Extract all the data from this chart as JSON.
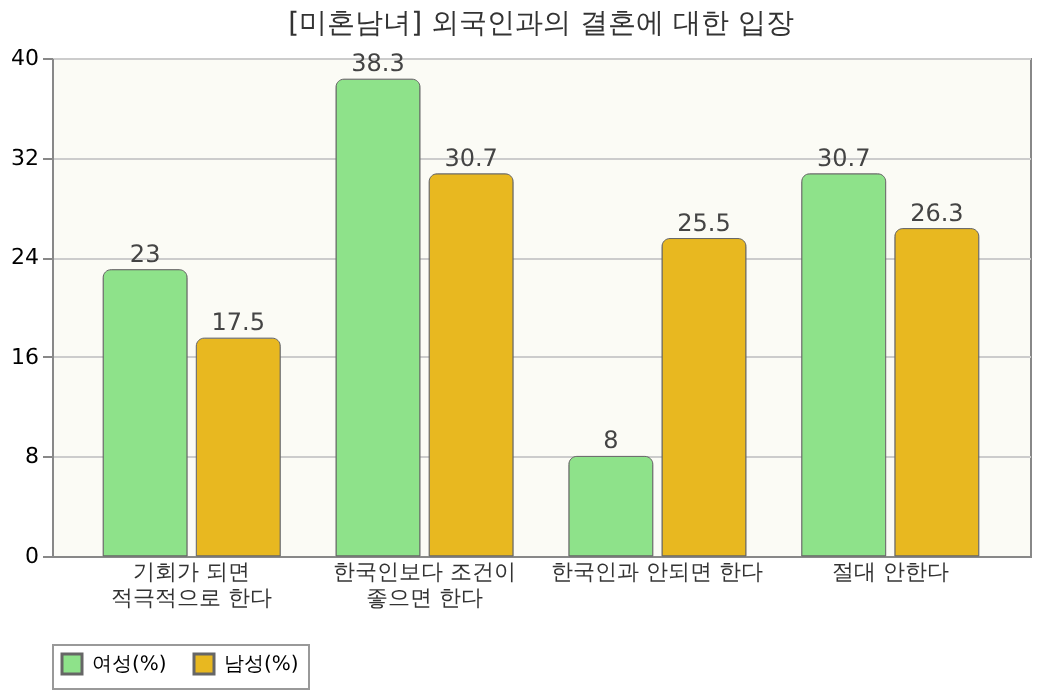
{
  "chart_data": {
    "type": "bar",
    "title": "[미혼남녀] 외국인과의 결혼에 대한 입장",
    "categories": [
      "기회가 되면 적극적으로 한다",
      "한국인보다 조건이 좋으면 한다",
      "한국인과 안되면 한다",
      "절대 안한다"
    ],
    "series": [
      {
        "name": "여성(%)",
        "color": "#8ee28a",
        "values": [
          23,
          38.3,
          8,
          30.7
        ]
      },
      {
        "name": "남성(%)",
        "color": "#e8b820",
        "values": [
          17.5,
          30.7,
          25.5,
          26.3
        ]
      }
    ],
    "ylim": [
      0,
      40
    ],
    "yticks": [
      0,
      8,
      16,
      24,
      32,
      40
    ],
    "grid": "y",
    "legend": "bottom",
    "data_labels": true
  }
}
